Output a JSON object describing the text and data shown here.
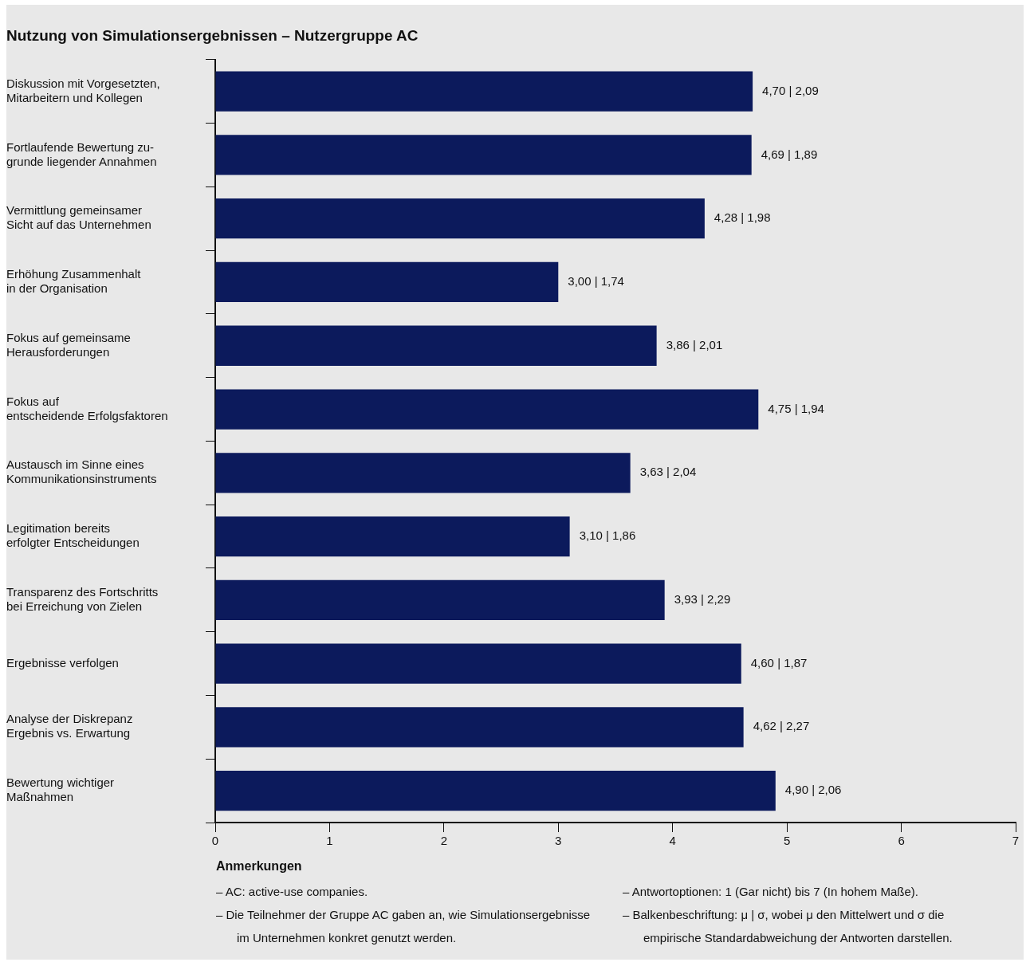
{
  "chart_data": {
    "type": "bar",
    "orientation": "horizontal",
    "title": "Nutzung von Simulationsergebnissen – Nutzergruppe AC",
    "categories": [
      "Diskussion mit Vorgesetzten,\nMitarbeitern und Kollegen",
      "Fortlaufende Bewertung zu-\ngrunde liegender Annahmen",
      "Vermittlung gemeinsamer\nSicht auf das Unternehmen",
      "Erhöhung Zusammenhalt\nin der Organisation",
      "Fokus auf gemeinsame\nHerausforderungen",
      "Fokus auf\nentscheidende Erfolgsfaktoren",
      "Austausch im Sinne eines\nKommunikationsinstruments",
      "Legitimation bereits\nerfolgter Entscheidungen",
      "Transparenz des Fortschritts\nbei Erreichung von Zielen",
      "Ergebnisse verfolgen",
      "Analyse der Diskrepanz\nErgebnis vs. Erwartung",
      "Bewertung wichtiger\nMaßnahmen"
    ],
    "values": [
      4.7,
      4.69,
      4.28,
      3.0,
      3.86,
      4.75,
      3.63,
      3.1,
      3.93,
      4.6,
      4.62,
      4.9
    ],
    "value_labels": [
      "4,70 | 2,09",
      "4,69 | 1,89",
      "4,28 | 1,98",
      "3,00 | 1,74",
      "3,86 | 2,01",
      "4,75 | 1,94",
      "3,63 | 2,04",
      "3,10 | 1,86",
      "3,93 | 2,29",
      "4,60 | 1,87",
      "4,62 | 2,27",
      "4,90 | 2,06"
    ],
    "color": "#0c1a5c",
    "xlim": [
      0,
      7
    ],
    "xticks": [
      0,
      1,
      2,
      3,
      4,
      5,
      6,
      7
    ],
    "grid": false,
    "annotations": [
      "Anmerkungen",
      "– AC: active-use companies.",
      "– Die Teilnehmer der Gruppe AC gaben an, wie Simulationsergebnisse im Unternehmen konkret genutzt werden.",
      "– Antwortoptionen: 1 (Gar nicht) bis 7 (In hohem Maße).",
      "– Balkenbeschriftung: μ | σ, wobei μ den Mittelwert und σ die empirische Standardabweichung der Antworten darstellen."
    ]
  }
}
